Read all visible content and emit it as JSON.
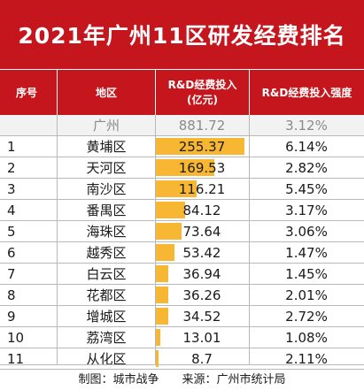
{
  "title": "2021年广州11区研发经费排名",
  "headers": {
    "rank": "序号",
    "district": "地区",
    "value_line1": "R&D经费投入",
    "value_line2": "(亿元)",
    "ratio": "R&D经费投入强度"
  },
  "summary": {
    "district": "广州",
    "value": "881.72",
    "ratio": "3.12%"
  },
  "colors": {
    "header_bg": "#c5161d",
    "bar": "#f7b733",
    "summary_bg": "#f2f2f2"
  },
  "chart_data": {
    "type": "table",
    "title": "2021年广州11区研发经费排名",
    "value_max": 255.37,
    "rows": [
      {
        "rank": "1",
        "district": "黄埔区",
        "value": 255.37,
        "value_text": "255.37",
        "ratio": "6.14%"
      },
      {
        "rank": "2",
        "district": "天河区",
        "value": 169.53,
        "value_text": "169.53",
        "ratio": "2.82%"
      },
      {
        "rank": "3",
        "district": "南沙区",
        "value": 116.21,
        "value_text": "116.21",
        "ratio": "5.45%"
      },
      {
        "rank": "4",
        "district": "番禺区",
        "value": 84.12,
        "value_text": "84.12",
        "ratio": "3.17%"
      },
      {
        "rank": "5",
        "district": "海珠区",
        "value": 73.64,
        "value_text": "73.64",
        "ratio": "3.06%"
      },
      {
        "rank": "6",
        "district": "越秀区",
        "value": 53.42,
        "value_text": "53.42",
        "ratio": "1.47%"
      },
      {
        "rank": "7",
        "district": "白云区",
        "value": 36.94,
        "value_text": "36.94",
        "ratio": "1.45%"
      },
      {
        "rank": "8",
        "district": "花都区",
        "value": 36.26,
        "value_text": "36.26",
        "ratio": "2.01%"
      },
      {
        "rank": "9",
        "district": "增城区",
        "value": 34.52,
        "value_text": "34.52",
        "ratio": "2.72%"
      },
      {
        "rank": "10",
        "district": "荔湾区",
        "value": 13.01,
        "value_text": "13.01",
        "ratio": "1.08%"
      },
      {
        "rank": "11",
        "district": "从化区",
        "value": 8.7,
        "value_text": "8.7",
        "ratio": "2.11%"
      }
    ]
  },
  "footer": {
    "maker": "制图：城市战争",
    "source": "来源：广州市统计局"
  }
}
